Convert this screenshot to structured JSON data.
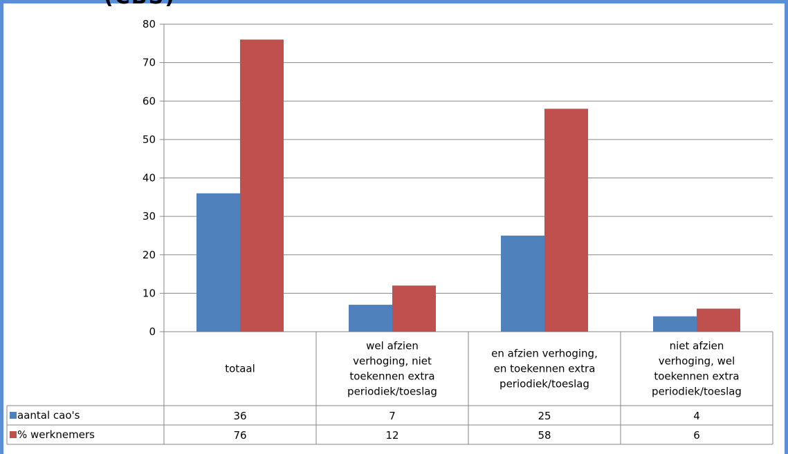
{
  "chart_data": {
    "type": "bar",
    "categories": [
      "totaal",
      "wel afzien verhoging, niet toekennen extra periodiek/toeslag",
      "en afzien verhoging, en toekennen extra periodiek/toeslag",
      "niet afzien verhoging, wel toekennen extra periodiek/toeslag"
    ],
    "category_lines": [
      [
        "totaal"
      ],
      [
        "wel afzien",
        "verhoging, niet",
        "toekennen extra",
        "periodiek/toeslag"
      ],
      [
        "en afzien verhoging,",
        "en toekennen extra",
        "periodiek/toeslag"
      ],
      [
        "niet afzien",
        "verhoging, wel",
        "toekennen extra",
        "periodiek/toeslag"
      ]
    ],
    "series": [
      {
        "name": "aantal cao's",
        "values": [
          36,
          7,
          25,
          4
        ],
        "color": "#4f81bd"
      },
      {
        "name": "% werknemers",
        "values": [
          76,
          12,
          58,
          6
        ],
        "color": "#c0504d"
      }
    ],
    "ylim": [
      0,
      80
    ],
    "yticks": [
      0,
      10,
      20,
      30,
      40,
      50,
      60,
      70,
      80
    ],
    "grid": true,
    "legend": "data-table"
  },
  "title_fragment": "(CBS)"
}
